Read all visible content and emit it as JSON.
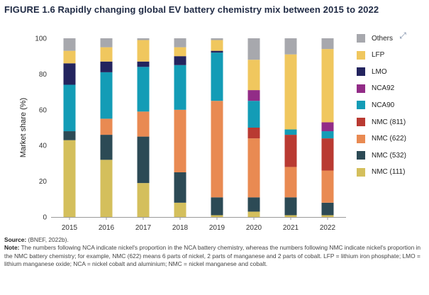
{
  "title": "FIGURE 1.6 Rapidly changing global EV battery chemistry mix between 2015 to 2022",
  "expand_icon": "expand-icon",
  "source": {
    "label": "Source:",
    "text": " (BNEF, 2022b)."
  },
  "note": {
    "label": "Note:",
    "text": " The numbers following NCA indicate nickel's proportion in the NCA battery chemistry, whereas the numbers following NMC indicate nickel's proportion in the NMC battery chemistry; for example, NMC (622) means 6 parts of nickel, 2 parts of manganese and 2 parts of cobalt. LFP = lithium iron phosphate; LMO = lithium manganese oxide; NCA = nickel cobalt and aluminium; NMC = nickel manganese and cobalt."
  },
  "chart_data": {
    "type": "bar",
    "stacked": true,
    "title": "FIGURE 1.6 Rapidly changing global EV battery chemistry mix between 2015 to 2022",
    "xlabel": "",
    "ylabel": "Market share (%)",
    "ylim": [
      0,
      100
    ],
    "yticks": [
      "0",
      "20",
      "40",
      "60",
      "80",
      "100"
    ],
    "categories": [
      "2015",
      "2016",
      "2017",
      "2018",
      "2019",
      "2020",
      "2021",
      "2022"
    ],
    "grid": false,
    "legend_position": "right",
    "series": [
      {
        "name": "NMC (111)",
        "color": "#d4bf5c",
        "values": [
          43,
          32,
          19,
          8,
          1,
          3,
          1,
          1
        ]
      },
      {
        "name": "NMC (532)",
        "color": "#2c4a55",
        "values": [
          5,
          14,
          26,
          17,
          10,
          8,
          10,
          7
        ]
      },
      {
        "name": "NMC (622)",
        "color": "#e98a52",
        "values": [
          0,
          9,
          14,
          35,
          54,
          33,
          17,
          18
        ]
      },
      {
        "name": "NMC (811)",
        "color": "#b93a32",
        "values": [
          0,
          0,
          0,
          0,
          0,
          6,
          18,
          18
        ]
      },
      {
        "name": "NCA90",
        "color": "#139cb6",
        "values": [
          26,
          26,
          25,
          25,
          27,
          15,
          3,
          4
        ]
      },
      {
        "name": "NCA92",
        "color": "#922c87",
        "values": [
          0,
          0,
          0,
          0,
          0,
          6,
          0,
          5
        ]
      },
      {
        "name": "LMO",
        "color": "#23245e",
        "values": [
          12,
          6,
          3,
          5,
          1,
          0,
          0,
          0
        ]
      },
      {
        "name": "LFP",
        "color": "#f0c75e",
        "values": [
          7,
          8,
          12,
          5,
          6,
          17,
          42,
          41
        ]
      },
      {
        "name": "Others",
        "color": "#a7a8ad",
        "values": [
          7,
          5,
          1,
          5,
          1,
          12,
          9,
          6
        ]
      }
    ],
    "legend_order": [
      "Others",
      "LFP",
      "LMO",
      "NCA92",
      "NCA90",
      "NMC (811)",
      "NMC (622)",
      "NMC (532)",
      "NMC (111)"
    ]
  }
}
